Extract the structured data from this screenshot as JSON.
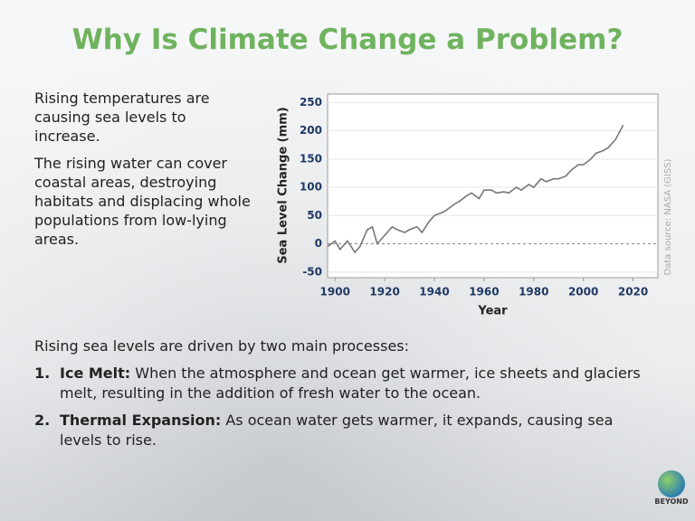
{
  "header": {
    "title": "Why Is Climate Change a Problem?"
  },
  "intro": [
    "Rising temperatures are causing sea levels to increase.",
    "The rising water can cover coastal areas, destroying habitats and displacing whole populations from low-lying areas."
  ],
  "chart_data": {
    "type": "line",
    "x_label": "Year",
    "y_label": "Sea Level Change (mm)",
    "source": "Data source: NASA (GISS)",
    "x": [
      1897,
      1900,
      1902,
      1905,
      1908,
      1910,
      1913,
      1915,
      1917,
      1920,
      1923,
      1925,
      1928,
      1930,
      1933,
      1935,
      1938,
      1940,
      1943,
      1945,
      1948,
      1950,
      1953,
      1955,
      1958,
      1960,
      1963,
      1965,
      1968,
      1970,
      1973,
      1975,
      1978,
      1980,
      1983,
      1985,
      1988,
      1990,
      1993,
      1995,
      1998,
      2000,
      2003,
      2005,
      2008,
      2010,
      2013,
      2016
    ],
    "values": [
      -5,
      5,
      -10,
      5,
      -15,
      -5,
      25,
      30,
      0,
      15,
      30,
      25,
      20,
      25,
      30,
      20,
      40,
      50,
      55,
      60,
      70,
      75,
      85,
      90,
      80,
      95,
      95,
      90,
      92,
      90,
      100,
      95,
      105,
      100,
      115,
      110,
      115,
      115,
      120,
      130,
      140,
      140,
      150,
      160,
      165,
      170,
      185,
      210
    ],
    "color": "#777777",
    "xlim": [
      1897,
      2030
    ],
    "ylim": [
      -60,
      265
    ],
    "xticks": [
      1900,
      1920,
      1940,
      1960,
      1980,
      2000,
      2020
    ],
    "yticks": [
      -50,
      0,
      50,
      100,
      150,
      200,
      250
    ],
    "grid": true
  },
  "processes": {
    "intro": "Rising sea levels are driven by two main processes:",
    "items": [
      {
        "number": "1.",
        "term": "Ice Melt:",
        "text": "When the atmosphere and ocean get warmer, ice sheets and glaciers melt, resulting in the addition of fresh water to the ocean."
      },
      {
        "number": "2.",
        "term": "Thermal Expansion:",
        "text": "As ocean water gets warmer, it expands, causing sea levels to rise."
      }
    ]
  },
  "logo": "BEYOND"
}
